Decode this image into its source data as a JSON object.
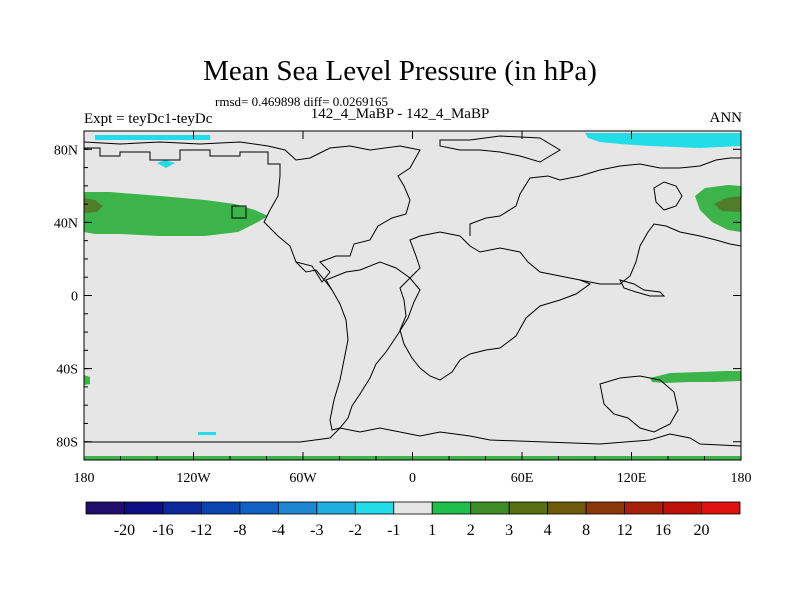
{
  "title": "Mean Sea Level Pressure (in hPa)",
  "stats": "rmsd= 0.469898 diff= 0.0269165",
  "left_label": "Expt = teyDc1-teyDc",
  "center_label": "142_4_MaBP - 142_4_MaBP",
  "right_label": "ANN",
  "lat_ticks": [
    {
      "label": "80N",
      "value": 80
    },
    {
      "label": "40N",
      "value": 40
    },
    {
      "label": "0",
      "value": 0
    },
    {
      "label": "40S",
      "value": -40
    },
    {
      "label": "80S",
      "value": -80
    }
  ],
  "lon_ticks": [
    {
      "label": "180",
      "value": -180
    },
    {
      "label": "120W",
      "value": -120
    },
    {
      "label": "60W",
      "value": -60
    },
    {
      "label": "0",
      "value": 0
    },
    {
      "label": "60E",
      "value": 60
    },
    {
      "label": "120E",
      "value": 120
    },
    {
      "label": "180",
      "value": 180
    }
  ],
  "colorbar": {
    "colors": [
      "#1f0f6b",
      "#0f0f84",
      "#0a2a9a",
      "#0a44b0",
      "#1160c4",
      "#1f86d2",
      "#20aee0",
      "#22dde8",
      "#e6e6e6",
      "#1fbf4c",
      "#3e8c25",
      "#5a6e12",
      "#6e5a0a",
      "#8a3a08",
      "#a8200a",
      "#c0100a",
      "#e01010"
    ],
    "labels": [
      "-20",
      "-16",
      "-12",
      "-8",
      "-4",
      "-3",
      "-2",
      "-1",
      "1",
      "2",
      "3",
      "4",
      "8",
      "12",
      "16",
      "20"
    ]
  },
  "map_colors": {
    "background": "#e6e6e6",
    "cyan": "#22dde8",
    "green": "#3cb44a",
    "olive": "#4f7d2a",
    "coast": "#000000"
  }
}
